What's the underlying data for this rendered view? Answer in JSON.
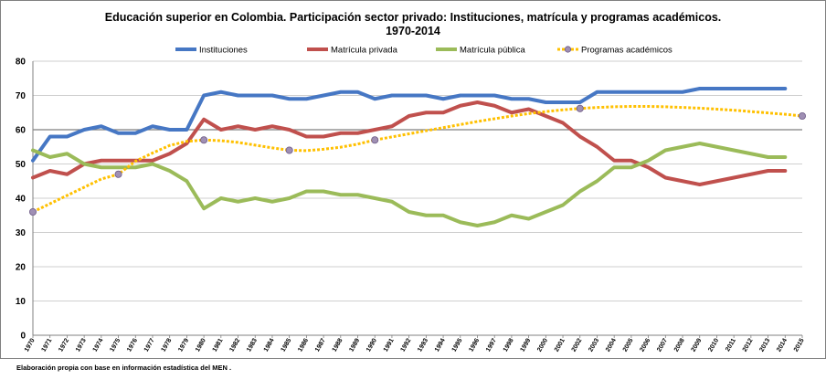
{
  "chart_data": {
    "type": "line",
    "title": "Educación superior en Colombia. Participación sector privado: Instituciones, matrícula y programas académicos.",
    "subtitle": "1970-2014",
    "x": [
      1970,
      1971,
      1972,
      1973,
      1974,
      1975,
      1976,
      1977,
      1978,
      1979,
      1980,
      1981,
      1982,
      1983,
      1984,
      1985,
      1986,
      1987,
      1988,
      1989,
      1990,
      1991,
      1992,
      1993,
      1994,
      1995,
      1996,
      1997,
      1998,
      1999,
      2000,
      2001,
      2002,
      2003,
      2004,
      2005,
      2006,
      2007,
      2008,
      2009,
      2010,
      2011,
      2012,
      2013,
      2014,
      2015
    ],
    "x_tick_labels": [
      "1970",
      "1971",
      "1972",
      "1973",
      "1974",
      "1975",
      "1976",
      "1977",
      "1978",
      "1979",
      "1980",
      "1981",
      "1982",
      "1983",
      "1984",
      "1985",
      "1986",
      "1987",
      "1988",
      "1989",
      "1990",
      "1991",
      "1992",
      "1993",
      "1994",
      "1995",
      "1996",
      "1997",
      "1998",
      "1999",
      "2000",
      "2001",
      "2002",
      "2003",
      "2004",
      "2005",
      "2006",
      "2007",
      "2008",
      "2009",
      "2010",
      "2011",
      "2012",
      "2013",
      "2014",
      "2015"
    ],
    "ylim": [
      0,
      80
    ],
    "y_ticks": [
      0,
      10,
      20,
      30,
      40,
      50,
      60,
      70,
      80
    ],
    "grid": "horizontal",
    "legend_position": "top",
    "series": [
      {
        "name": "Instituciones",
        "color": "#4677c4",
        "style": "solid",
        "values": [
          51,
          58,
          58,
          60,
          61,
          59,
          59,
          61,
          60,
          60,
          70,
          71,
          70,
          70,
          70,
          69,
          69,
          70,
          71,
          71,
          69,
          70,
          70,
          70,
          69,
          70,
          70,
          70,
          69,
          69,
          68,
          68,
          68,
          71,
          71,
          71,
          71,
          71,
          71,
          72,
          72,
          72,
          72,
          72,
          72,
          null
        ]
      },
      {
        "name": "Matrícula privada",
        "color": "#c0504d",
        "style": "solid",
        "values": [
          46,
          48,
          47,
          50,
          51,
          51,
          51,
          51,
          53,
          56,
          63,
          60,
          61,
          60,
          61,
          60,
          58,
          58,
          59,
          59,
          60,
          61,
          64,
          65,
          65,
          67,
          68,
          67,
          65,
          66,
          64,
          62,
          58,
          55,
          51,
          51,
          49,
          46,
          45,
          44,
          45,
          46,
          47,
          48,
          48,
          null
        ]
      },
      {
        "name": "Matrícula pública",
        "color": "#9bbb59",
        "style": "solid",
        "values": [
          54,
          52,
          53,
          50,
          49,
          49,
          49,
          50,
          48,
          45,
          37,
          40,
          39,
          40,
          39,
          40,
          42,
          42,
          41,
          41,
          40,
          39,
          36,
          35,
          35,
          33,
          32,
          33,
          35,
          34,
          36,
          38,
          42,
          45,
          49,
          49,
          51,
          54,
          55,
          56,
          55,
          54,
          53,
          52,
          52,
          null
        ]
      },
      {
        "name": "Programas académicos",
        "color": "#ffc000",
        "style": "dotted",
        "marker_color": "#9f8fb4",
        "marker_years": [
          1970,
          1975,
          1980,
          1985,
          1990,
          2002,
          2015
        ],
        "values": [
          36,
          38.4,
          40.8,
          43.2,
          45.6,
          47,
          50.8,
          53.2,
          55.4,
          56.6,
          57,
          56.8,
          56.3,
          55.5,
          54.7,
          54,
          53.9,
          54.3,
          54.9,
          55.8,
          57,
          57.9,
          58.8,
          59.7,
          60.6,
          61.5,
          62.4,
          63.2,
          64,
          64.7,
          65.3,
          65.8,
          66.2,
          66.5,
          66.7,
          66.8,
          66.8,
          66.7,
          66.5,
          66.3,
          66,
          65.7,
          65.3,
          64.9,
          64.5,
          64
        ]
      }
    ]
  },
  "footer": {
    "source": "Elaboración propia con base en información estadística del MEN ."
  }
}
